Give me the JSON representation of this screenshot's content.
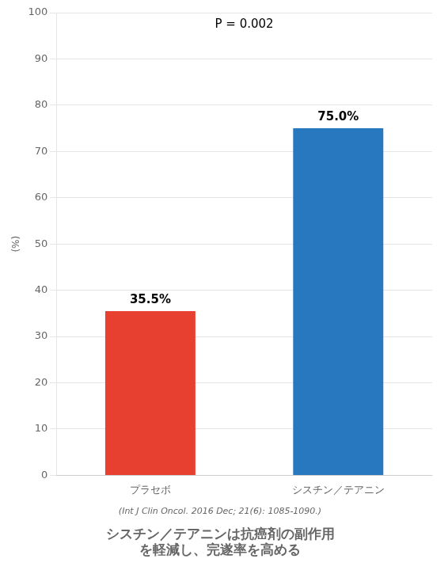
{
  "chart_data": {
    "type": "bar",
    "title": [
      "シスチン／テアニンは抗癌剤の副作用",
      "を軽減し、完遂率を高める"
    ],
    "subtitle": "(Int J Clin Oncol. 2016 Dec; 21(6): 1085-1090.)",
    "ylabel": "(%)",
    "categories": [
      "プラセボ",
      "シスチン／テアニン"
    ],
    "values": [
      35.5,
      75.0
    ],
    "colors": [
      "#E84030",
      "#2878C0"
    ],
    "data_labels": true,
    "value_labels": [
      "35.5%",
      "75.0%"
    ],
    "annotations": [
      "P = 0.002"
    ],
    "ylim": [
      0,
      100
    ],
    "yticks": [
      0,
      10,
      20,
      30,
      40,
      50,
      60,
      70,
      80,
      90,
      100
    ],
    "grid": true
  }
}
